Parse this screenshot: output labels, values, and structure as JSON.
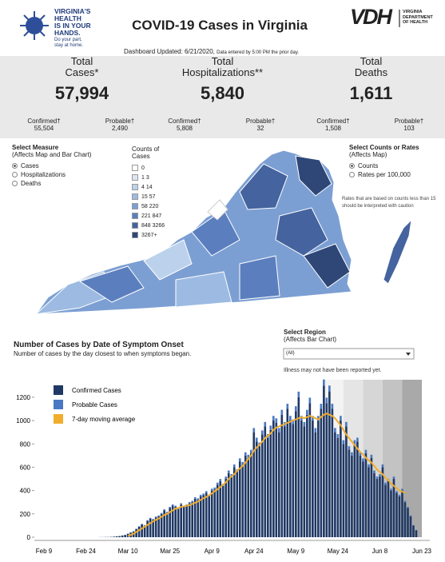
{
  "header": {
    "logo_lines": [
      "VIRGINIA'S",
      "HEALTH",
      "IS IN YOUR",
      "HANDS."
    ],
    "logo_tag": [
      "Do your part,",
      "stay at home."
    ],
    "title": "COVID-19 Cases in Virginia",
    "vdh_mark": "VDH",
    "vdh_name": [
      "VIRGINIA",
      "DEPARTMENT",
      "OF HEALTH"
    ],
    "updated": "Dashboard Updated: 6/21/2020,",
    "updated_note": "Data entered by 5:00 PM the prior day."
  },
  "stats": [
    {
      "title": [
        "Total",
        "Cases*"
      ],
      "value": "57,994",
      "breakdown": [
        {
          "label": "Confirmed†",
          "value": "55,504"
        },
        {
          "label": "Probable†",
          "value": "2,490"
        }
      ]
    },
    {
      "title": [
        "Total",
        "Hospitalizations**"
      ],
      "value": "5,840",
      "breakdown": [
        {
          "label": "Confirmed†",
          "value": "5,808"
        },
        {
          "label": "Probable†",
          "value": "32"
        }
      ]
    },
    {
      "title": [
        "Total",
        "Deaths"
      ],
      "value": "1,611",
      "breakdown": [
        {
          "label": "Confirmed†",
          "value": "1,508"
        },
        {
          "label": "Probable†",
          "value": "103"
        }
      ]
    }
  ],
  "measure": {
    "title": "Select Measure",
    "subtitle": "(Affects Map and Bar Chart)",
    "options": [
      "Cases",
      "Hospitalizations",
      "Deaths"
    ],
    "selected": 0
  },
  "map_legend": {
    "title": [
      "Counts of",
      "Cases"
    ],
    "items": [
      {
        "label": "0",
        "color": "#ffffff"
      },
      {
        "label": "1  3",
        "color": "#dbe6f4"
      },
      {
        "label": "4  14",
        "color": "#bcd1ec"
      },
      {
        "label": "15  57",
        "color": "#9dbbe2"
      },
      {
        "label": "58  220",
        "color": "#7c9fd3"
      },
      {
        "label": "221  847",
        "color": "#5b7fbe"
      },
      {
        "label": "848  3266",
        "color": "#44639f"
      },
      {
        "label": "3267+",
        "color": "#2e4777"
      }
    ]
  },
  "rate": {
    "title": "Select Counts or Rates",
    "subtitle": "(Affects Map)",
    "options": [
      "Counts",
      "Rates per 100,000"
    ],
    "selected": 0,
    "note": "Rates that are based on counts less than 15 should be interpreted with caution"
  },
  "region": {
    "title": "Select Region",
    "subtitle": "(Affects Bar Chart)",
    "selected": "(All)",
    "note": "Illness may not have been reported yet."
  },
  "chart_data": {
    "type": "bar",
    "stacked": true,
    "title": "Number of Cases by Date of Symptom Onset",
    "subtitle": "Number of cases by the day closest to when symptoms began.",
    "categories": [
      "Feb 9",
      null,
      null,
      null,
      null,
      null,
      null,
      null,
      null,
      null,
      null,
      null,
      null,
      null,
      null,
      "Feb 24",
      null,
      null,
      null,
      null,
      null,
      null,
      null,
      null,
      null,
      null,
      null,
      null,
      null,
      null,
      "Mar 10",
      null,
      null,
      null,
      null,
      null,
      null,
      null,
      null,
      null,
      null,
      null,
      null,
      null,
      null,
      "Mar 25",
      null,
      null,
      null,
      null,
      null,
      null,
      null,
      null,
      null,
      null,
      null,
      null,
      null,
      null,
      "Apr 9",
      null,
      null,
      null,
      null,
      null,
      null,
      null,
      null,
      null,
      null,
      null,
      null,
      null,
      null,
      "Apr 24",
      null,
      null,
      null,
      null,
      null,
      null,
      null,
      null,
      null,
      null,
      null,
      null,
      null,
      null,
      "May 9",
      null,
      null,
      null,
      null,
      null,
      null,
      null,
      null,
      null,
      null,
      null,
      null,
      null,
      null,
      "May 24",
      null,
      null,
      null,
      null,
      null,
      null,
      null,
      null,
      null,
      null,
      null,
      null,
      null,
      null,
      "Jun 8",
      null,
      null,
      null,
      null,
      null,
      null,
      null,
      null,
      null,
      null,
      null,
      null,
      null,
      null,
      "Jun 23"
    ],
    "series": [
      {
        "name": "Confirmed Cases",
        "color": "#1f3864",
        "values": [
          0,
          0,
          0,
          0,
          0,
          0,
          0,
          0,
          0,
          0,
          0,
          0,
          0,
          0,
          0,
          0,
          0,
          0,
          0,
          0,
          1,
          1,
          2,
          2,
          3,
          5,
          8,
          10,
          15,
          20,
          30,
          40,
          50,
          70,
          90,
          110,
          100,
          140,
          160,
          150,
          170,
          180,
          200,
          230,
          210,
          250,
          270,
          260,
          240,
          280,
          260,
          270,
          290,
          300,
          330,
          320,
          350,
          360,
          380,
          350,
          400,
          410,
          450,
          480,
          440,
          500,
          550,
          520,
          600,
          560,
          650,
          620,
          700,
          680,
          720,
          900,
          820,
          780,
          880,
          950,
          850,
          920,
          1000,
          980,
          900,
          1050,
          950,
          1100,
          1000,
          970,
          1080,
          1200,
          1000,
          950,
          1050,
          1150,
          1000,
          900,
          1000,
          1100,
          1300,
          1150,
          1250,
          1100,
          900,
          850,
          1000,
          800,
          950,
          750,
          700,
          800,
          820,
          700,
          650,
          720,
          600,
          680,
          550,
          500,
          520,
          600,
          450,
          480,
          400,
          500,
          380,
          350,
          400,
          300,
          250,
          180,
          100,
          60,
          0,
          0
        ]
      },
      {
        "name": "Probable Cases",
        "color": "#4a78c2",
        "values": [
          0,
          0,
          0,
          0,
          0,
          0,
          0,
          0,
          0,
          0,
          0,
          0,
          0,
          0,
          0,
          0,
          0,
          0,
          0,
          0,
          0,
          0,
          0,
          0,
          0,
          0,
          0,
          0,
          0,
          0,
          1,
          2,
          2,
          3,
          4,
          4,
          4,
          6,
          6,
          6,
          7,
          7,
          8,
          9,
          8,
          10,
          11,
          10,
          10,
          11,
          10,
          11,
          12,
          12,
          13,
          13,
          14,
          14,
          15,
          14,
          16,
          16,
          18,
          19,
          18,
          20,
          22,
          21,
          24,
          22,
          26,
          25,
          28,
          27,
          29,
          36,
          33,
          31,
          35,
          38,
          34,
          37,
          40,
          39,
          36,
          42,
          38,
          44,
          40,
          39,
          43,
          48,
          40,
          38,
          42,
          46,
          40,
          36,
          40,
          44,
          52,
          46,
          50,
          44,
          36,
          34,
          40,
          32,
          38,
          30,
          28,
          32,
          33,
          28,
          26,
          29,
          24,
          27,
          22,
          20,
          21,
          24,
          18,
          19,
          16,
          20,
          15,
          14,
          16,
          12,
          10,
          7,
          4,
          2,
          0,
          0
        ]
      },
      {
        "name": "7-day moving average",
        "color": "#f0ad2e",
        "type": "line",
        "values": [
          null,
          null,
          null,
          null,
          null,
          null,
          null,
          null,
          null,
          null,
          null,
          null,
          null,
          null,
          null,
          null,
          null,
          null,
          null,
          null,
          null,
          null,
          null,
          null,
          null,
          null,
          null,
          null,
          null,
          null,
          10,
          20,
          30,
          45,
          60,
          75,
          90,
          105,
          120,
          135,
          150,
          160,
          175,
          190,
          200,
          215,
          230,
          245,
          250,
          260,
          265,
          270,
          275,
          285,
          295,
          305,
          320,
          335,
          345,
          360,
          375,
          395,
          410,
          430,
          450,
          470,
          500,
          520,
          540,
          570,
          590,
          610,
          640,
          670,
          700,
          740,
          770,
          790,
          820,
          850,
          870,
          890,
          920,
          940,
          950,
          960,
          970,
          980,
          990,
          1000,
          1010,
          1020,
          1030,
          1020,
          1030,
          1040,
          1030,
          1020,
          1010,
          1030,
          1050,
          1060,
          1050,
          1040,
          1020,
          990,
          960,
          920,
          880,
          850,
          820,
          790,
          760,
          730,
          710,
          680,
          660,
          640,
          610,
          580,
          560,
          540,
          510,
          490,
          460,
          440,
          420,
          400,
          390,
          380,
          null,
          null,
          null,
          null,
          null,
          null
        ]
      }
    ],
    "ylim": [
      0,
      1350
    ],
    "yticks": [
      0,
      200,
      400,
      600,
      800,
      1000,
      1200
    ],
    "grid": false
  }
}
